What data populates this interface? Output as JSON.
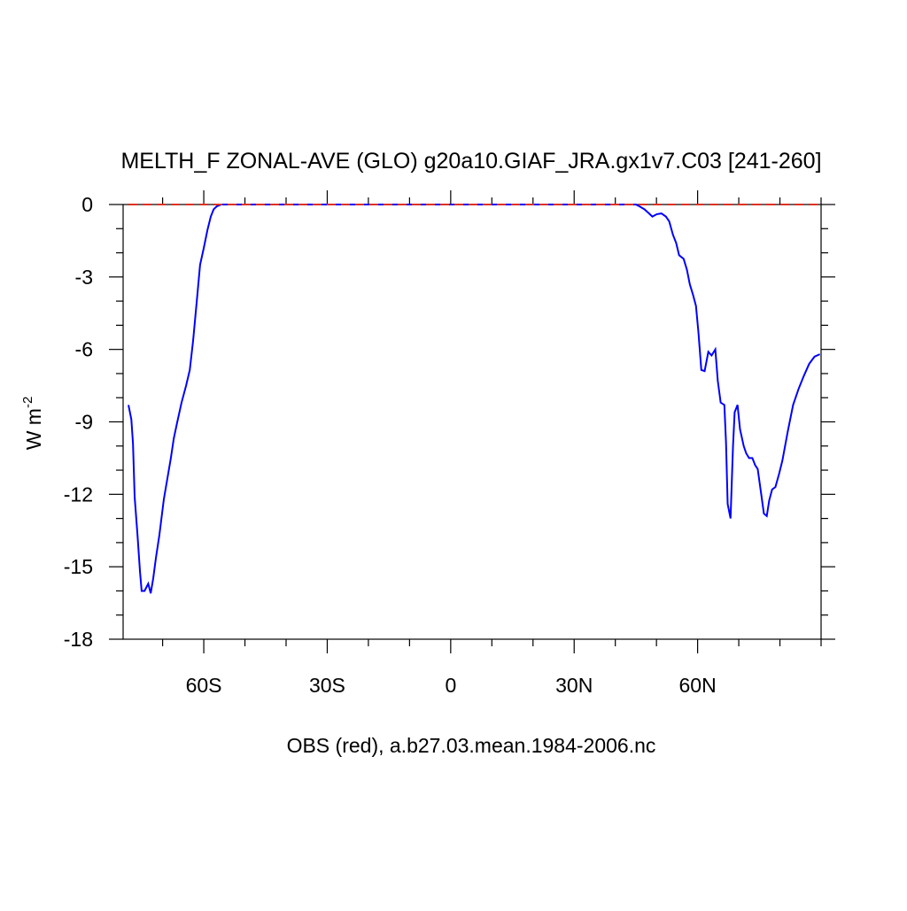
{
  "chart_data": {
    "type": "line",
    "title": "MELTH_F ZONAL-AVE (GLO) g20a10.GIAF_JRA.gx1v7.C03 [241-260]",
    "ylabel": {
      "text": "W m",
      "superscript": "-2"
    },
    "xlabel": "OBS (red), a.b27.03.mean.1984-2006.nc",
    "xlim": [
      -79.6,
      90
    ],
    "ylim": [
      -18,
      0
    ],
    "xticks": [
      {
        "value": -60,
        "label": "60S"
      },
      {
        "value": -30,
        "label": "30S"
      },
      0,
      {
        "value": 30,
        "label": "30N"
      },
      {
        "value": 60,
        "label": "60N"
      }
    ],
    "xminorticks": [
      -70,
      -50,
      -40,
      -20,
      -10,
      10,
      20,
      40,
      50,
      70,
      80,
      90
    ],
    "yticks": [
      0,
      -3,
      -6,
      -9,
      -12,
      -15,
      -18
    ],
    "yminorticks": [
      -1,
      -2,
      -4,
      -5,
      -7,
      -8,
      -10,
      -11,
      -13,
      -14,
      -16,
      -17
    ],
    "series": [
      {
        "color": "#0000ff",
        "dashed": false,
        "x": [
          -78.3,
          -77.6,
          -77.2,
          -76.8,
          -76.1,
          -75.5,
          -75.1,
          -74.4,
          -73.5,
          -72.9,
          -72.3,
          -71.6,
          -70.8,
          -69.7,
          -68.8,
          -68.0,
          -67.3,
          -66.5,
          -65.4,
          -64.3,
          -63.4,
          -62.6,
          -61.7,
          -60.9,
          -60.0,
          -59.1,
          -58.3,
          -57.6,
          -56.8,
          -55.7,
          45.0,
          45.8,
          47.1,
          48.2,
          49.0,
          50.1,
          51.2,
          52.3,
          53.1,
          54.0,
          54.8,
          55.5,
          56.6,
          57.4,
          58.1,
          58.9,
          59.6,
          60.2,
          60.9,
          61.7,
          62.6,
          63.4,
          64.3,
          64.9,
          65.6,
          66.5,
          66.9,
          67.3,
          68.0,
          68.6,
          69.0,
          69.7,
          70.3,
          71.2,
          71.8,
          72.5,
          73.3,
          74.0,
          74.6,
          75.5,
          76.1,
          76.8,
          77.4,
          78.1,
          78.9,
          79.8,
          80.6,
          81.9,
          83.2,
          84.5,
          85.8,
          87.1,
          88.4,
          89.7
        ],
        "values": [
          -8.3,
          -8.9,
          -9.9,
          -12.1,
          -13.7,
          -15.2,
          -16.0,
          -16.0,
          -15.7,
          -16.1,
          -15.5,
          -14.6,
          -13.7,
          -12.2,
          -11.3,
          -10.5,
          -9.7,
          -9.05,
          -8.2,
          -7.5,
          -6.85,
          -5.65,
          -4.0,
          -2.5,
          -1.8,
          -1.05,
          -0.5,
          -0.2,
          -0.07,
          0,
          0,
          -0.07,
          -0.2,
          -0.37,
          -0.5,
          -0.4,
          -0.37,
          -0.5,
          -0.7,
          -1.25,
          -1.6,
          -2.1,
          -2.25,
          -2.7,
          -3.3,
          -3.75,
          -4.2,
          -5.3,
          -6.85,
          -6.9,
          -6.1,
          -6.25,
          -6.0,
          -7.3,
          -8.2,
          -8.3,
          -9.85,
          -12.4,
          -13.0,
          -10.0,
          -8.6,
          -8.3,
          -9.3,
          -10.0,
          -10.3,
          -10.5,
          -10.5,
          -10.8,
          -10.95,
          -12.05,
          -12.8,
          -12.9,
          -12.25,
          -11.8,
          -11.7,
          -11.15,
          -10.6,
          -9.4,
          -8.3,
          -7.65,
          -7.1,
          -6.6,
          -6.3,
          -6.2
        ]
      },
      {
        "color": "#e03020",
        "dashed": true,
        "x": [
          -78.3,
          90
        ],
        "values": [
          0,
          0
        ]
      }
    ]
  }
}
